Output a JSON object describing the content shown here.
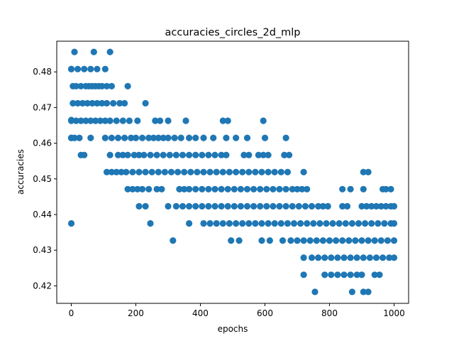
{
  "chart_data": {
    "type": "scatter",
    "title": "accuracies_circles_2d_mlp",
    "xlabel": "epochs",
    "ylabel": "accuracies",
    "xlim": [
      -45,
      1045
    ],
    "ylim": [
      0.4151,
      0.4886
    ],
    "xticks": [
      0,
      200,
      400,
      600,
      800,
      1000
    ],
    "yticks": [
      0.42,
      0.43,
      0.44,
      0.45,
      0.46,
      0.47,
      0.48
    ],
    "ytick_labels": [
      "0.42",
      "0.43",
      "0.44",
      "0.45",
      "0.46",
      "0.47",
      "0.48"
    ],
    "grid": false,
    "marker_color": "#1f77b4",
    "series": [
      {
        "values_note": "",
        "points": [
          [
            0,
            0.4375
          ],
          [
            0,
            0.4615
          ],
          [
            0,
            0.4665
          ],
          [
            0,
            0.4808
          ],
          [
            10,
            0.4856
          ],
          [
            70,
            0.4856
          ],
          [
            120,
            0.4856
          ],
          [
            0,
            0.4808
          ],
          [
            20,
            0.4808
          ],
          [
            40,
            0.4808
          ],
          [
            60,
            0.4808
          ],
          [
            80,
            0.4808
          ],
          [
            105,
            0.4808
          ],
          [
            5,
            0.476
          ],
          [
            15,
            0.476
          ],
          [
            30,
            0.476
          ],
          [
            45,
            0.476
          ],
          [
            55,
            0.476
          ],
          [
            65,
            0.476
          ],
          [
            75,
            0.476
          ],
          [
            85,
            0.476
          ],
          [
            95,
            0.476
          ],
          [
            110,
            0.476
          ],
          [
            125,
            0.476
          ],
          [
            175,
            0.476
          ],
          [
            5,
            0.4712
          ],
          [
            20,
            0.4712
          ],
          [
            35,
            0.4712
          ],
          [
            50,
            0.4712
          ],
          [
            65,
            0.4712
          ],
          [
            80,
            0.4712
          ],
          [
            95,
            0.4712
          ],
          [
            110,
            0.4712
          ],
          [
            130,
            0.4712
          ],
          [
            150,
            0.4712
          ],
          [
            165,
            0.4712
          ],
          [
            230,
            0.4712
          ],
          [
            0,
            0.4663
          ],
          [
            15,
            0.4663
          ],
          [
            30,
            0.4663
          ],
          [
            45,
            0.4663
          ],
          [
            60,
            0.4663
          ],
          [
            75,
            0.4663
          ],
          [
            90,
            0.4663
          ],
          [
            105,
            0.4663
          ],
          [
            120,
            0.4663
          ],
          [
            140,
            0.4663
          ],
          [
            160,
            0.4663
          ],
          [
            180,
            0.4663
          ],
          [
            205,
            0.4663
          ],
          [
            260,
            0.4663
          ],
          [
            275,
            0.4663
          ],
          [
            300,
            0.4663
          ],
          [
            355,
            0.4663
          ],
          [
            470,
            0.4663
          ],
          [
            485,
            0.4663
          ],
          [
            595,
            0.4663
          ],
          [
            0,
            0.4615
          ],
          [
            10,
            0.4615
          ],
          [
            25,
            0.4615
          ],
          [
            60,
            0.4615
          ],
          [
            105,
            0.4615
          ],
          [
            125,
            0.4615
          ],
          [
            145,
            0.4615
          ],
          [
            165,
            0.4615
          ],
          [
            185,
            0.4615
          ],
          [
            200,
            0.4615
          ],
          [
            220,
            0.4615
          ],
          [
            240,
            0.4615
          ],
          [
            255,
            0.4615
          ],
          [
            270,
            0.4615
          ],
          [
            285,
            0.4615
          ],
          [
            300,
            0.4615
          ],
          [
            320,
            0.4615
          ],
          [
            340,
            0.4615
          ],
          [
            365,
            0.4615
          ],
          [
            385,
            0.4615
          ],
          [
            410,
            0.4615
          ],
          [
            440,
            0.4615
          ],
          [
            480,
            0.4615
          ],
          [
            510,
            0.4615
          ],
          [
            545,
            0.4615
          ],
          [
            600,
            0.4615
          ],
          [
            665,
            0.4615
          ],
          [
            30,
            0.4567
          ],
          [
            40,
            0.4567
          ],
          [
            120,
            0.4567
          ],
          [
            145,
            0.4567
          ],
          [
            160,
            0.4567
          ],
          [
            175,
            0.4567
          ],
          [
            195,
            0.4567
          ],
          [
            210,
            0.4567
          ],
          [
            225,
            0.4567
          ],
          [
            245,
            0.4567
          ],
          [
            265,
            0.4567
          ],
          [
            285,
            0.4567
          ],
          [
            305,
            0.4567
          ],
          [
            325,
            0.4567
          ],
          [
            345,
            0.4567
          ],
          [
            365,
            0.4567
          ],
          [
            385,
            0.4567
          ],
          [
            405,
            0.4567
          ],
          [
            425,
            0.4567
          ],
          [
            445,
            0.4567
          ],
          [
            465,
            0.4567
          ],
          [
            480,
            0.4567
          ],
          [
            535,
            0.4567
          ],
          [
            550,
            0.4567
          ],
          [
            580,
            0.4567
          ],
          [
            595,
            0.4567
          ],
          [
            610,
            0.4567
          ],
          [
            660,
            0.4567
          ],
          [
            675,
            0.4567
          ],
          [
            110,
            0.4519
          ],
          [
            125,
            0.4519
          ],
          [
            140,
            0.4519
          ],
          [
            155,
            0.4519
          ],
          [
            170,
            0.4519
          ],
          [
            190,
            0.4519
          ],
          [
            210,
            0.4519
          ],
          [
            230,
            0.4519
          ],
          [
            250,
            0.4519
          ],
          [
            270,
            0.4519
          ],
          [
            290,
            0.4519
          ],
          [
            310,
            0.4519
          ],
          [
            330,
            0.4519
          ],
          [
            350,
            0.4519
          ],
          [
            370,
            0.4519
          ],
          [
            390,
            0.4519
          ],
          [
            410,
            0.4519
          ],
          [
            430,
            0.4519
          ],
          [
            450,
            0.4519
          ],
          [
            470,
            0.4519
          ],
          [
            490,
            0.4519
          ],
          [
            510,
            0.4519
          ],
          [
            530,
            0.4519
          ],
          [
            550,
            0.4519
          ],
          [
            570,
            0.4519
          ],
          [
            590,
            0.4519
          ],
          [
            610,
            0.4519
          ],
          [
            630,
            0.4519
          ],
          [
            650,
            0.4519
          ],
          [
            670,
            0.4519
          ],
          [
            720,
            0.4519
          ],
          [
            905,
            0.4519
          ],
          [
            920,
            0.4519
          ],
          [
            175,
            0.4471
          ],
          [
            190,
            0.4471
          ],
          [
            205,
            0.4471
          ],
          [
            220,
            0.4471
          ],
          [
            240,
            0.4471
          ],
          [
            265,
            0.4471
          ],
          [
            280,
            0.4471
          ],
          [
            335,
            0.4471
          ],
          [
            350,
            0.4471
          ],
          [
            365,
            0.4471
          ],
          [
            385,
            0.4471
          ],
          [
            405,
            0.4471
          ],
          [
            425,
            0.4471
          ],
          [
            445,
            0.4471
          ],
          [
            465,
            0.4471
          ],
          [
            485,
            0.4471
          ],
          [
            505,
            0.4471
          ],
          [
            525,
            0.4471
          ],
          [
            545,
            0.4471
          ],
          [
            565,
            0.4471
          ],
          [
            585,
            0.4471
          ],
          [
            605,
            0.4471
          ],
          [
            625,
            0.4471
          ],
          [
            645,
            0.4471
          ],
          [
            665,
            0.4471
          ],
          [
            685,
            0.4471
          ],
          [
            700,
            0.4471
          ],
          [
            715,
            0.4471
          ],
          [
            730,
            0.4471
          ],
          [
            840,
            0.4471
          ],
          [
            865,
            0.4471
          ],
          [
            905,
            0.4471
          ],
          [
            965,
            0.4471
          ],
          [
            975,
            0.4471
          ],
          [
            990,
            0.4471
          ],
          [
            210,
            0.4423
          ],
          [
            230,
            0.4423
          ],
          [
            300,
            0.4423
          ],
          [
            325,
            0.4423
          ],
          [
            345,
            0.4423
          ],
          [
            365,
            0.4423
          ],
          [
            385,
            0.4423
          ],
          [
            405,
            0.4423
          ],
          [
            425,
            0.4423
          ],
          [
            445,
            0.4423
          ],
          [
            465,
            0.4423
          ],
          [
            485,
            0.4423
          ],
          [
            505,
            0.4423
          ],
          [
            525,
            0.4423
          ],
          [
            545,
            0.4423
          ],
          [
            565,
            0.4423
          ],
          [
            585,
            0.4423
          ],
          [
            605,
            0.4423
          ],
          [
            625,
            0.4423
          ],
          [
            645,
            0.4423
          ],
          [
            665,
            0.4423
          ],
          [
            685,
            0.4423
          ],
          [
            705,
            0.4423
          ],
          [
            725,
            0.4423
          ],
          [
            745,
            0.4423
          ],
          [
            765,
            0.4423
          ],
          [
            780,
            0.4423
          ],
          [
            795,
            0.4423
          ],
          [
            840,
            0.4423
          ],
          [
            855,
            0.4423
          ],
          [
            900,
            0.4423
          ],
          [
            915,
            0.4423
          ],
          [
            930,
            0.4423
          ],
          [
            945,
            0.4423
          ],
          [
            960,
            0.4423
          ],
          [
            975,
            0.4423
          ],
          [
            990,
            0.4423
          ],
          [
            1000,
            0.4423
          ],
          [
            245,
            0.4375
          ],
          [
            365,
            0.4375
          ],
          [
            410,
            0.4375
          ],
          [
            430,
            0.4375
          ],
          [
            450,
            0.4375
          ],
          [
            470,
            0.4375
          ],
          [
            490,
            0.4375
          ],
          [
            510,
            0.4375
          ],
          [
            530,
            0.4375
          ],
          [
            550,
            0.4375
          ],
          [
            570,
            0.4375
          ],
          [
            590,
            0.4375
          ],
          [
            610,
            0.4375
          ],
          [
            630,
            0.4375
          ],
          [
            650,
            0.4375
          ],
          [
            670,
            0.4375
          ],
          [
            690,
            0.4375
          ],
          [
            710,
            0.4375
          ],
          [
            730,
            0.4375
          ],
          [
            750,
            0.4375
          ],
          [
            770,
            0.4375
          ],
          [
            790,
            0.4375
          ],
          [
            810,
            0.4375
          ],
          [
            830,
            0.4375
          ],
          [
            850,
            0.4375
          ],
          [
            870,
            0.4375
          ],
          [
            890,
            0.4375
          ],
          [
            910,
            0.4375
          ],
          [
            930,
            0.4375
          ],
          [
            950,
            0.4375
          ],
          [
            970,
            0.4375
          ],
          [
            990,
            0.4375
          ],
          [
            1000,
            0.4375
          ],
          [
            315,
            0.4327
          ],
          [
            495,
            0.4327
          ],
          [
            520,
            0.4327
          ],
          [
            590,
            0.4327
          ],
          [
            615,
            0.4327
          ],
          [
            655,
            0.4327
          ],
          [
            680,
            0.4327
          ],
          [
            700,
            0.4327
          ],
          [
            720,
            0.4327
          ],
          [
            740,
            0.4327
          ],
          [
            760,
            0.4327
          ],
          [
            780,
            0.4327
          ],
          [
            800,
            0.4327
          ],
          [
            820,
            0.4327
          ],
          [
            840,
            0.4327
          ],
          [
            860,
            0.4327
          ],
          [
            880,
            0.4327
          ],
          [
            900,
            0.4327
          ],
          [
            920,
            0.4327
          ],
          [
            940,
            0.4327
          ],
          [
            960,
            0.4327
          ],
          [
            980,
            0.4327
          ],
          [
            1000,
            0.4327
          ],
          [
            720,
            0.4279
          ],
          [
            745,
            0.4279
          ],
          [
            765,
            0.4279
          ],
          [
            785,
            0.4279
          ],
          [
            805,
            0.4279
          ],
          [
            825,
            0.4279
          ],
          [
            845,
            0.4279
          ],
          [
            865,
            0.4279
          ],
          [
            885,
            0.4279
          ],
          [
            905,
            0.4279
          ],
          [
            925,
            0.4279
          ],
          [
            945,
            0.4279
          ],
          [
            965,
            0.4279
          ],
          [
            985,
            0.4279
          ],
          [
            1000,
            0.4279
          ],
          [
            720,
            0.4231
          ],
          [
            785,
            0.4231
          ],
          [
            805,
            0.4231
          ],
          [
            825,
            0.4231
          ],
          [
            845,
            0.4231
          ],
          [
            865,
            0.4231
          ],
          [
            885,
            0.4231
          ],
          [
            900,
            0.4231
          ],
          [
            940,
            0.4231
          ],
          [
            955,
            0.4231
          ],
          [
            755,
            0.4183
          ],
          [
            870,
            0.4183
          ],
          [
            905,
            0.4183
          ],
          [
            920,
            0.4183
          ]
        ]
      }
    ]
  }
}
